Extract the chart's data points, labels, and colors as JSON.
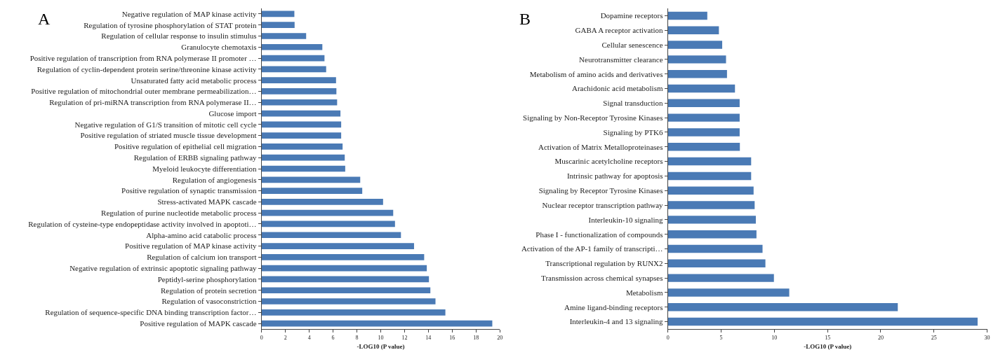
{
  "chart_data": [
    {
      "type": "bar",
      "orientation": "horizontal",
      "title": "A",
      "xlabel": "-LOG10 (P value)",
      "color": "#4a7ab5",
      "xlim": [
        0,
        20
      ],
      "xticks": [
        0,
        2,
        4,
        6,
        8,
        10,
        12,
        14,
        16,
        18,
        20
      ],
      "categories": [
        "Negative regulation of MAP kinase activity",
        "Regulation of tyrosine phosphorylation of STAT protein",
        "Regulation of cellular response to insulin stimulus",
        "Granulocyte chemotaxis",
        "Positive regulation of transcription from RNA polymerase II promoter …",
        "Regulation of cyclin-dependent protein serine/threonine kinase activity",
        "Unsaturated fatty acid metabolic process",
        "Positive regulation of mitochondrial outer membrane permeabilization…",
        "Regulation of pri-miRNA transcription from RNA polymerase II…",
        "Glucose import",
        "Negative regulation of G1/S transition of mitotic cell cycle",
        "Positive regulation of striated muscle tissue development",
        "Positive regulation of epithelial cell migration",
        "Regulation of ERBB signaling pathway",
        "Myeloid leukocyte differentiation",
        "Regulation of angiogenesis",
        "Positive regulation of synaptic transmission",
        "Stress-activated MAPK cascade",
        "Regulation of purine nucleotide metabolic process",
        "Regulation of cysteine-type endopeptidase activity involved in apoptoti…",
        "Alpha-amino acid catabolic process",
        "Positive regulation of MAP kinase activity",
        "Regulation of calcium ion transport",
        "Negative regulation of extrinsic apoptotic signaling pathway",
        "Peptidyl-serine phosphorylation",
        "Regulation of protein secretion",
        "Regulation of vasoconstriction",
        "Regulation of sequence-specific DNA binding transcription factor…",
        "Positive regulation of MAPK cascade"
      ],
      "values": [
        2.75,
        2.77,
        3.74,
        5.1,
        5.28,
        5.42,
        6.25,
        6.28,
        6.34,
        6.62,
        6.68,
        6.68,
        6.8,
        6.98,
        7.02,
        8.28,
        8.45,
        10.2,
        11.05,
        11.2,
        11.7,
        12.8,
        13.65,
        13.87,
        14.05,
        14.17,
        14.6,
        15.43,
        19.37
      ]
    },
    {
      "type": "bar",
      "orientation": "horizontal",
      "title": "B",
      "xlabel": "-LOG10 (P value)",
      "color": "#4a7ab5",
      "xlim": [
        0,
        30
      ],
      "xticks": [
        0,
        5,
        10,
        15,
        20,
        25,
        30
      ],
      "categories": [
        "Dopamine receptors",
        "GABA A receptor activation",
        "Cellular senescence",
        "Neurotransmitter clearance",
        "Metabolism of amino acids and derivatives",
        "Arachidonic acid metabolism",
        "Signal transduction",
        "Signaling by Non-Receptor Tyrosine Kinases",
        "Signaling by PTK6",
        "Activation of Matrix Metalloproteinases",
        "Muscarinic acetylcholine receptors",
        "Intrinsic pathway for apoptosis",
        "Signaling by Receptor Tyrosine Kinases",
        "Nuclear receptor transcription pathway",
        "Interleukin-10 signaling",
        "Phase I - functionalization of compounds",
        "Activation of the AP-1 family of transcripti…",
        "Transcriptional regulation by RUNX2",
        "Transmission across chemical synapses",
        "Metabolism",
        "Amine ligand-binding receptors",
        "Interleukin-4 and 13 signaling"
      ],
      "values": [
        3.7,
        4.79,
        5.1,
        5.46,
        5.55,
        6.3,
        6.74,
        6.74,
        6.74,
        6.76,
        7.82,
        7.82,
        8.05,
        8.15,
        8.26,
        8.32,
        8.89,
        9.16,
        9.96,
        11.4,
        21.6,
        29.1
      ]
    }
  ]
}
